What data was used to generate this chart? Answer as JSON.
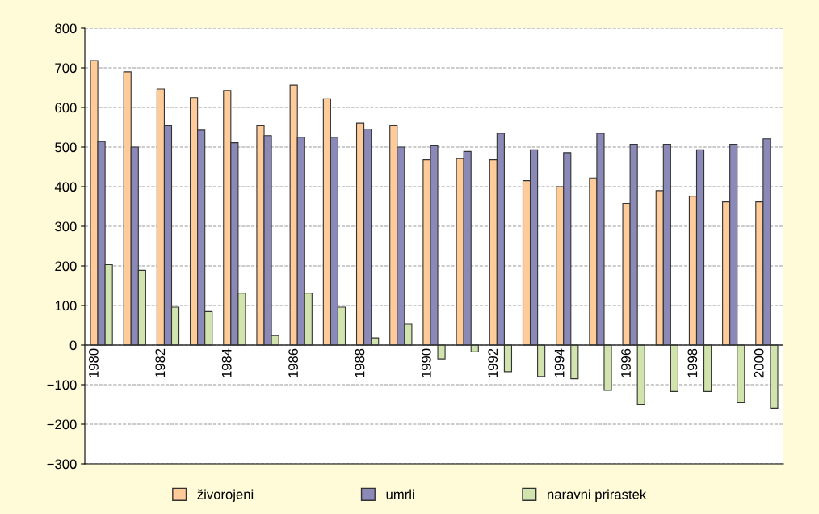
{
  "chart_data": {
    "type": "bar",
    "categories": [
      "1980",
      null,
      "1982",
      null,
      "1984",
      null,
      "1986",
      null,
      "1988",
      null,
      "1990",
      null,
      "1992",
      null,
      "1994",
      null,
      "1996",
      null,
      "1998",
      null,
      "2000"
    ],
    "series": [
      {
        "name": "živorojeni",
        "color": "#ffcc99",
        "values": [
          718,
          690,
          647,
          625,
          643,
          554,
          657,
          622,
          561,
          554,
          468,
          471,
          468,
          415,
          400,
          422,
          358,
          390,
          376,
          362,
          362
        ]
      },
      {
        "name": "umrli",
        "color": "#8a89b8",
        "values": [
          514,
          500,
          554,
          543,
          511,
          529,
          525,
          525,
          546,
          500,
          503,
          489,
          535,
          493,
          486,
          535,
          507,
          507,
          493,
          507,
          521
        ]
      },
      {
        "name": "naravni prirastek",
        "color": "#d1e4ad",
        "values": [
          203,
          189,
          96,
          85,
          131,
          24,
          131,
          96,
          18,
          53,
          -35,
          -17,
          -67,
          -79,
          -85,
          -114,
          -150,
          -117,
          -117,
          -146,
          -160
        ]
      }
    ],
    "ylim": [
      -300,
      800
    ],
    "yticks": [
      {
        "value": -300,
        "label": "−300"
      },
      {
        "value": -200,
        "label": "−200"
      },
      {
        "value": -100,
        "label": "−100"
      },
      0,
      100,
      200,
      300,
      400,
      500,
      600,
      700,
      800
    ],
    "grid": "y",
    "legend": "bottom"
  }
}
